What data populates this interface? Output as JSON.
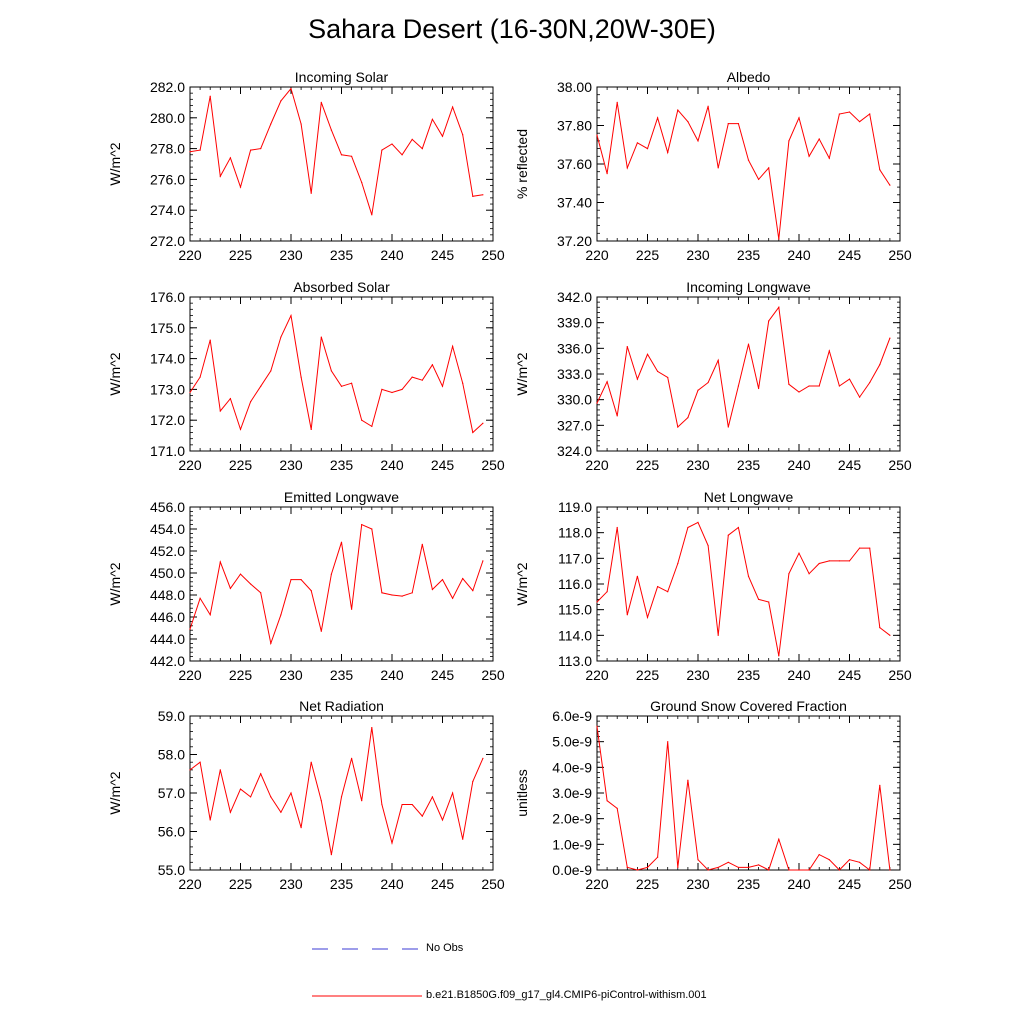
{
  "title": "Sahara Desert (16-30N,20W-30E)",
  "colors": {
    "model_line": "#ff0000",
    "obs_line": "#3b3bd6",
    "axes": "#000000"
  },
  "legend": {
    "obs_label": "No Obs",
    "model_label": "b.e21.B1850G.f09_g17_gl4.CMIP6-piControl-withism.001"
  },
  "chart_data": [
    {
      "type": "line",
      "title": "Incoming Solar",
      "ylabel": "W/m^2",
      "xlim": [
        220,
        250
      ],
      "ylim": [
        272.0,
        282.0
      ],
      "x_ticks": [
        220,
        225,
        230,
        235,
        240,
        245,
        250
      ],
      "x_tick_labels": [
        "220",
        "225",
        "230",
        "235",
        "240",
        "245",
        "250"
      ],
      "y_ticks": [
        272.0,
        274.0,
        276.0,
        278.0,
        280.0,
        282.0
      ],
      "y_tick_labels": [
        "272.0",
        "274.0",
        "276.0",
        "278.0",
        "280.0",
        "282.0"
      ],
      "x": [
        220,
        221,
        222,
        223,
        224,
        225,
        226,
        227,
        228,
        229,
        230,
        231,
        232,
        233,
        234,
        235,
        236,
        237,
        238,
        239,
        240,
        241,
        242,
        243,
        244,
        245,
        246,
        247,
        248,
        249
      ],
      "values": [
        277.8,
        277.9,
        281.4,
        276.2,
        277.4,
        275.5,
        277.9,
        278.0,
        279.6,
        281.1,
        281.9,
        279.6,
        275.1,
        281.0,
        279.2,
        277.6,
        277.5,
        275.8,
        273.7,
        277.9,
        278.3,
        277.6,
        278.6,
        278.0,
        279.9,
        278.8,
        280.7,
        278.9,
        274.9,
        275.0
      ]
    },
    {
      "type": "line",
      "title": "Albedo",
      "ylabel": "% reflected",
      "xlim": [
        220,
        250
      ],
      "ylim": [
        37.2,
        38.0
      ],
      "x_ticks": [
        220,
        225,
        230,
        235,
        240,
        245,
        250
      ],
      "x_tick_labels": [
        "220",
        "225",
        "230",
        "235",
        "240",
        "245",
        "250"
      ],
      "y_ticks": [
        37.2,
        37.4,
        37.6,
        37.8,
        38.0
      ],
      "y_tick_labels": [
        "37.20",
        "37.40",
        "37.60",
        "37.80",
        "38.00"
      ],
      "x": [
        220,
        221,
        222,
        223,
        224,
        225,
        226,
        227,
        228,
        229,
        230,
        231,
        232,
        233,
        234,
        235,
        236,
        237,
        238,
        239,
        240,
        241,
        242,
        243,
        244,
        245,
        246,
        247,
        248,
        249
      ],
      "values": [
        37.75,
        37.55,
        37.92,
        37.58,
        37.71,
        37.68,
        37.84,
        37.66,
        37.88,
        37.82,
        37.72,
        37.9,
        37.58,
        37.81,
        37.81,
        37.62,
        37.52,
        37.58,
        37.21,
        37.72,
        37.84,
        37.64,
        37.73,
        37.63,
        37.86,
        37.87,
        37.82,
        37.86,
        37.57,
        37.49
      ]
    },
    {
      "type": "line",
      "title": "Absorbed Solar",
      "ylabel": "W/m^2",
      "xlim": [
        220,
        250
      ],
      "ylim": [
        171.0,
        176.0
      ],
      "x_ticks": [
        220,
        225,
        230,
        235,
        240,
        245,
        250
      ],
      "x_tick_labels": [
        "220",
        "225",
        "230",
        "235",
        "240",
        "245",
        "250"
      ],
      "y_ticks": [
        171.0,
        172.0,
        173.0,
        174.0,
        175.0,
        176.0
      ],
      "y_tick_labels": [
        "171.0",
        "172.0",
        "173.0",
        "174.0",
        "175.0",
        "176.0"
      ],
      "x": [
        220,
        221,
        222,
        223,
        224,
        225,
        226,
        227,
        228,
        229,
        230,
        231,
        232,
        233,
        234,
        235,
        236,
        237,
        238,
        239,
        240,
        241,
        242,
        243,
        244,
        245,
        246,
        247,
        248,
        249
      ],
      "values": [
        172.9,
        173.4,
        174.6,
        172.3,
        172.7,
        171.7,
        172.6,
        173.1,
        173.6,
        174.7,
        175.4,
        173.4,
        171.7,
        174.7,
        173.6,
        173.1,
        173.2,
        172.0,
        171.8,
        173.0,
        172.9,
        173.0,
        173.4,
        173.3,
        173.8,
        173.1,
        174.4,
        173.2,
        171.6,
        171.9
      ]
    },
    {
      "type": "line",
      "title": "Incoming Longwave",
      "ylabel": "W/m^2",
      "xlim": [
        220,
        250
      ],
      "ylim": [
        324.0,
        342.0
      ],
      "x_ticks": [
        220,
        225,
        230,
        235,
        240,
        245,
        250
      ],
      "x_tick_labels": [
        "220",
        "225",
        "230",
        "235",
        "240",
        "245",
        "250"
      ],
      "y_ticks": [
        324.0,
        327.0,
        330.0,
        333.0,
        336.0,
        339.0,
        342.0
      ],
      "y_tick_labels": [
        "324.0",
        "327.0",
        "330.0",
        "333.0",
        "336.0",
        "339.0",
        "342.0"
      ],
      "x": [
        220,
        221,
        222,
        223,
        224,
        225,
        226,
        227,
        228,
        229,
        230,
        231,
        232,
        233,
        234,
        235,
        236,
        237,
        238,
        239,
        240,
        241,
        242,
        243,
        244,
        245,
        246,
        247,
        248,
        249
      ],
      "values": [
        329.6,
        332.1,
        328.1,
        336.2,
        332.4,
        335.3,
        333.3,
        332.6,
        326.8,
        327.9,
        331.1,
        332.0,
        334.6,
        326.8,
        331.6,
        336.5,
        331.3,
        339.2,
        340.8,
        331.8,
        330.9,
        331.6,
        331.6,
        335.7,
        331.6,
        332.4,
        330.3,
        332.0,
        334.1,
        337.2
      ]
    },
    {
      "type": "line",
      "title": "Emitted Longwave",
      "ylabel": "W/m^2",
      "xlim": [
        220,
        250
      ],
      "ylim": [
        442.0,
        456.0
      ],
      "x_ticks": [
        220,
        225,
        230,
        235,
        240,
        245,
        250
      ],
      "x_tick_labels": [
        "220",
        "225",
        "230",
        "235",
        "240",
        "245",
        "250"
      ],
      "y_ticks": [
        442.0,
        444.0,
        446.0,
        448.0,
        450.0,
        452.0,
        454.0,
        456.0
      ],
      "y_tick_labels": [
        "442.0",
        "444.0",
        "446.0",
        "448.0",
        "450.0",
        "452.0",
        "454.0",
        "456.0"
      ],
      "x": [
        220,
        221,
        222,
        223,
        224,
        225,
        226,
        227,
        228,
        229,
        230,
        231,
        232,
        233,
        234,
        235,
        236,
        237,
        238,
        239,
        240,
        241,
        242,
        243,
        244,
        245,
        246,
        247,
        248,
        249
      ],
      "values": [
        444.9,
        447.7,
        446.2,
        451.0,
        448.6,
        449.9,
        449.0,
        448.2,
        443.6,
        446.2,
        449.4,
        449.4,
        448.4,
        444.7,
        449.9,
        452.8,
        446.7,
        454.4,
        454.0,
        448.2,
        448.0,
        447.9,
        448.2,
        452.6,
        448.5,
        449.4,
        447.7,
        449.5,
        448.4,
        451.1
      ]
    },
    {
      "type": "line",
      "title": "Net Longwave",
      "ylabel": "W/m^2",
      "xlim": [
        220,
        250
      ],
      "ylim": [
        113.0,
        119.0
      ],
      "x_ticks": [
        220,
        225,
        230,
        235,
        240,
        245,
        250
      ],
      "x_tick_labels": [
        "220",
        "225",
        "230",
        "235",
        "240",
        "245",
        "250"
      ],
      "y_ticks": [
        113.0,
        114.0,
        115.0,
        116.0,
        117.0,
        118.0,
        119.0
      ],
      "y_tick_labels": [
        "113.0",
        "114.0",
        "115.0",
        "116.0",
        "117.0",
        "118.0",
        "119.0"
      ],
      "x": [
        220,
        221,
        222,
        223,
        224,
        225,
        226,
        227,
        228,
        229,
        230,
        231,
        232,
        233,
        234,
        235,
        236,
        237,
        238,
        239,
        240,
        241,
        242,
        243,
        244,
        245,
        246,
        247,
        248,
        249
      ],
      "values": [
        115.3,
        115.7,
        118.2,
        114.8,
        116.3,
        114.7,
        115.9,
        115.7,
        116.8,
        118.2,
        118.4,
        117.5,
        114.0,
        117.9,
        118.2,
        116.3,
        115.4,
        115.3,
        113.2,
        116.4,
        117.2,
        116.4,
        116.8,
        116.9,
        116.9,
        116.9,
        117.4,
        117.4,
        114.3,
        114.0
      ]
    },
    {
      "type": "line",
      "title": "Net Radiation",
      "ylabel": "W/m^2",
      "xlim": [
        220,
        250
      ],
      "ylim": [
        55.0,
        59.0
      ],
      "x_ticks": [
        220,
        225,
        230,
        235,
        240,
        245,
        250
      ],
      "x_tick_labels": [
        "220",
        "225",
        "230",
        "235",
        "240",
        "245",
        "250"
      ],
      "y_ticks": [
        55.0,
        56.0,
        57.0,
        58.0,
        59.0
      ],
      "y_tick_labels": [
        "55.0",
        "56.0",
        "57.0",
        "58.0",
        "59.0"
      ],
      "x": [
        220,
        221,
        222,
        223,
        224,
        225,
        226,
        227,
        228,
        229,
        230,
        231,
        232,
        233,
        234,
        235,
        236,
        237,
        238,
        239,
        240,
        241,
        242,
        243,
        244,
        245,
        246,
        247,
        248,
        249
      ],
      "values": [
        57.6,
        57.8,
        56.3,
        57.6,
        56.5,
        57.1,
        56.9,
        57.5,
        56.9,
        56.5,
        57.0,
        56.1,
        57.8,
        56.8,
        55.4,
        56.9,
        57.9,
        56.8,
        58.7,
        56.7,
        55.7,
        56.7,
        56.7,
        56.4,
        56.9,
        56.3,
        57.0,
        55.8,
        57.3,
        57.9
      ]
    },
    {
      "type": "line",
      "title": "Ground Snow Covered Fraction",
      "ylabel": "unitless",
      "xlim": [
        220,
        250
      ],
      "ylim": [
        0.0,
        6.0
      ],
      "y_scale_note": "values in units of 1e-9",
      "x_ticks": [
        220,
        225,
        230,
        235,
        240,
        245,
        250
      ],
      "x_tick_labels": [
        "220",
        "225",
        "230",
        "235",
        "240",
        "245",
        "250"
      ],
      "y_ticks": [
        0.0,
        1.0,
        2.0,
        3.0,
        4.0,
        5.0,
        6.0
      ],
      "y_tick_labels": [
        "0.0e-9",
        "1.0e-9",
        "2.0e-9",
        "3.0e-9",
        "4.0e-9",
        "5.0e-9",
        "6.0e-9"
      ],
      "x": [
        220,
        221,
        222,
        223,
        224,
        225,
        226,
        227,
        228,
        229,
        230,
        231,
        232,
        233,
        234,
        235,
        236,
        237,
        238,
        239,
        240,
        241,
        242,
        243,
        244,
        245,
        246,
        247,
        248,
        249
      ],
      "values": [
        5.6,
        2.7,
        2.4,
        0.1,
        0.0,
        0.1,
        0.5,
        5.0,
        0.1,
        3.5,
        0.4,
        0.0,
        0.1,
        0.3,
        0.1,
        0.1,
        0.2,
        0.0,
        1.2,
        0.0,
        0.0,
        0.0,
        0.6,
        0.4,
        0.0,
        0.4,
        0.3,
        0.0,
        3.3,
        0.0
      ]
    }
  ]
}
